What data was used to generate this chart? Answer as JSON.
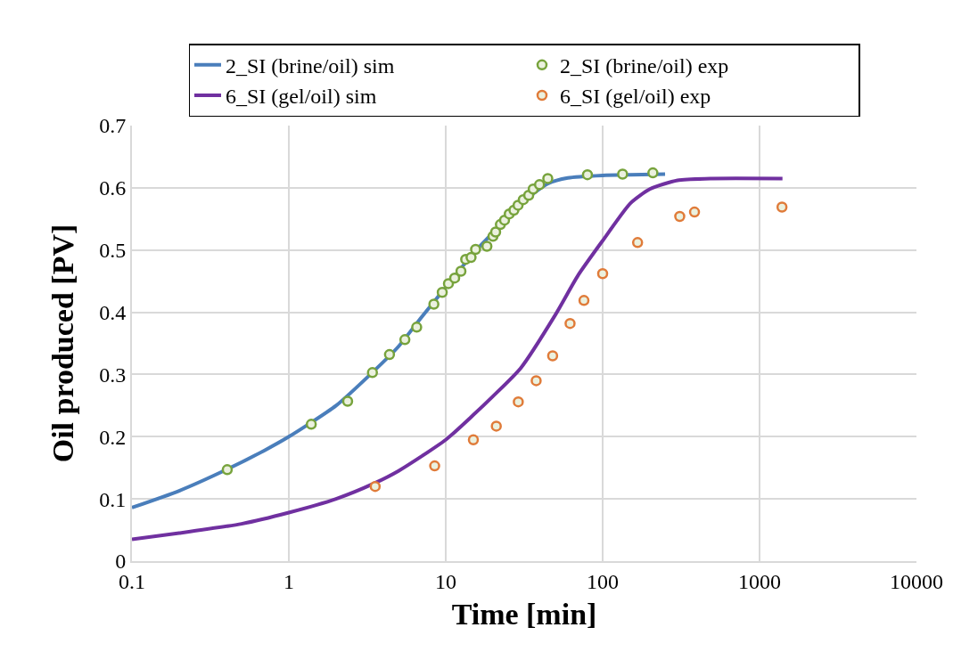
{
  "chart_data": {
    "type": "line",
    "xlabel": "Time [min]",
    "ylabel": "Oil produced [PV]",
    "log": "x",
    "xlim": [
      0.1,
      10000
    ],
    "xticks": [
      0.1,
      1,
      10,
      100,
      1000,
      10000
    ],
    "ylim": [
      0,
      0.7
    ],
    "yticks": [
      0,
      0.1,
      0.2,
      0.3,
      0.4,
      0.5,
      0.6,
      0.7
    ],
    "grid": true,
    "legend": "top",
    "series": [
      {
        "name": "2_SI (brine/oil) sim",
        "marker": "none",
        "color": "#4a7ebb",
        "x": [
          0.1,
          0.2,
          0.4,
          0.7,
          1,
          2,
          3.4,
          5,
          7,
          10,
          15,
          20,
          30,
          45,
          60,
          100,
          150,
          250
        ],
        "values": [
          0.086,
          0.113,
          0.147,
          0.178,
          0.2,
          0.25,
          0.303,
          0.345,
          0.392,
          0.44,
          0.495,
          0.528,
          0.575,
          0.607,
          0.616,
          0.62,
          0.621,
          0.622
        ]
      },
      {
        "name": "2_SI (brine/oil) exp",
        "type": "scatter",
        "marker": "circle",
        "color": "#77a33c",
        "x": [
          0.405,
          1.39,
          2.37,
          3.41,
          4.38,
          5.49,
          6.53,
          8.4,
          9.5,
          10.4,
          11.4,
          12.5,
          13.4,
          14.5,
          15.5,
          18.3,
          20.0,
          20.8,
          22.3,
          23.7,
          25.4,
          27.2,
          28.9,
          31.2,
          33.8,
          36.1,
          39.6,
          44.7,
          80,
          134,
          209
        ],
        "values": [
          0.147,
          0.22,
          0.257,
          0.303,
          0.332,
          0.356,
          0.376,
          0.413,
          0.432,
          0.446,
          0.455,
          0.466,
          0.485,
          0.488,
          0.501,
          0.506,
          0.522,
          0.529,
          0.541,
          0.548,
          0.558,
          0.564,
          0.572,
          0.581,
          0.588,
          0.598,
          0.605,
          0.615,
          0.621,
          0.622,
          0.624
        ]
      },
      {
        "name": "6_SI (gel/oil) sim",
        "marker": "none",
        "color": "#7030a0",
        "x": [
          0.1,
          0.2,
          0.5,
          1,
          2,
          3.5,
          5,
          10,
          15,
          20,
          30,
          50,
          70,
          100,
          150,
          200,
          300,
          500,
          1400
        ],
        "values": [
          0.035,
          0.045,
          0.06,
          0.078,
          0.1,
          0.125,
          0.145,
          0.195,
          0.235,
          0.265,
          0.31,
          0.396,
          0.46,
          0.515,
          0.575,
          0.598,
          0.612,
          0.615,
          0.615
        ]
      },
      {
        "name": "6_SI (gel/oil) exp",
        "type": "scatter",
        "marker": "circle",
        "color": "#e07b39",
        "x": [
          3.55,
          8.5,
          15.0,
          21.0,
          29.0,
          37.7,
          48,
          62,
          76,
          100,
          167,
          310,
          385,
          1390
        ],
        "values": [
          0.12,
          0.153,
          0.195,
          0.217,
          0.256,
          0.29,
          0.33,
          0.382,
          0.419,
          0.462,
          0.512,
          0.554,
          0.561,
          0.569
        ]
      }
    ]
  }
}
